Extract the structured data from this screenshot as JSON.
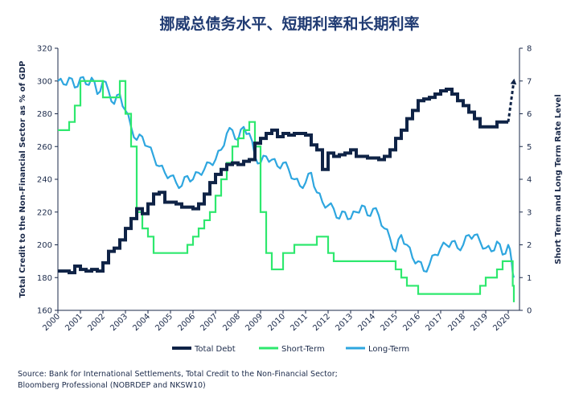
{
  "chart_data": {
    "type": "line",
    "title": "挪威总债务水平、短期利率和长期利率",
    "ylabel_left": "Total Credit to the Non-Financial Sector as % of GDP",
    "ylabel_right": "Short Term and Long Term Rate Level",
    "ylim_left": [
      160,
      320
    ],
    "ylim_right": [
      0,
      8
    ],
    "xlim": [
      2000.0,
      2020.5
    ],
    "x_ticks": [
      "2000",
      "2001",
      "2002",
      "2003",
      "2004",
      "2005",
      "2006",
      "2007",
      "2008",
      "2009",
      "2010",
      "2011",
      "2012",
      "2013",
      "2014",
      "2015",
      "2016",
      "2017",
      "2018",
      "2019",
      "2020"
    ],
    "y_ticks_left": [
      "160",
      "180",
      "200",
      "220",
      "240",
      "260",
      "280",
      "300",
      "320"
    ],
    "y_ticks_right": [
      "0",
      "1",
      "2",
      "3",
      "4",
      "5",
      "6",
      "7",
      "8"
    ],
    "grid": false,
    "legend_position": "bottom",
    "series": [
      {
        "name": "Total Debt",
        "axis": "left",
        "color": "#0f2346",
        "x": [
          2000.0,
          2000.25,
          2000.5,
          2000.75,
          2001.0,
          2001.25,
          2001.5,
          2001.75,
          2002.0,
          2002.25,
          2002.5,
          2002.75,
          2003.0,
          2003.25,
          2003.5,
          2003.75,
          2004.0,
          2004.25,
          2004.5,
          2004.75,
          2005.0,
          2005.25,
          2005.5,
          2005.75,
          2006.0,
          2006.25,
          2006.5,
          2006.75,
          2007.0,
          2007.25,
          2007.5,
          2007.75,
          2008.0,
          2008.25,
          2008.5,
          2008.75,
          2009.0,
          2009.25,
          2009.5,
          2009.75,
          2010.0,
          2010.25,
          2010.5,
          2010.75,
          2011.0,
          2011.25,
          2011.5,
          2011.75,
          2012.0,
          2012.25,
          2012.5,
          2012.75,
          2013.0,
          2013.25,
          2013.5,
          2013.75,
          2014.0,
          2014.25,
          2014.5,
          2014.75,
          2015.0,
          2015.25,
          2015.5,
          2015.75,
          2016.0,
          2016.25,
          2016.5,
          2016.75,
          2017.0,
          2017.25,
          2017.5,
          2017.75,
          2018.0,
          2018.25,
          2018.5,
          2018.75,
          2019.0,
          2019.25,
          2019.5,
          2019.75,
          2020.0
        ],
        "values": [
          184,
          184,
          183,
          187,
          185,
          184,
          185,
          184,
          189,
          196,
          198,
          203,
          210,
          216,
          222,
          219,
          225,
          231,
          232,
          226,
          226,
          225,
          223,
          223,
          222,
          225,
          231,
          238,
          243,
          246,
          249,
          250,
          249,
          251,
          252,
          262,
          265,
          268,
          270,
          266,
          268,
          267,
          268,
          268,
          267,
          261,
          258,
          246,
          256,
          254,
          255,
          256,
          258,
          254,
          254,
          253,
          253,
          252,
          254,
          258,
          265,
          270,
          277,
          282,
          288,
          289,
          290,
          292,
          294,
          295,
          292,
          288,
          285,
          281,
          277,
          272,
          272,
          272,
          275,
          275,
          275
        ],
        "projection": {
          "x": [
            2020.0,
            2020.25
          ],
          "values": [
            275,
            300
          ]
        }
      },
      {
        "name": "Short-Term",
        "axis": "right",
        "color": "#2ee86e",
        "x": [
          2000.0,
          2000.25,
          2000.5,
          2000.75,
          2001.0,
          2001.25,
          2001.5,
          2001.75,
          2002.0,
          2002.25,
          2002.5,
          2002.75,
          2003.0,
          2003.25,
          2003.5,
          2003.75,
          2004.0,
          2004.25,
          2004.5,
          2004.75,
          2005.0,
          2005.25,
          2005.5,
          2005.75,
          2006.0,
          2006.25,
          2006.5,
          2006.75,
          2007.0,
          2007.25,
          2007.5,
          2007.75,
          2008.0,
          2008.25,
          2008.5,
          2008.75,
          2009.0,
          2009.25,
          2009.5,
          2009.75,
          2010.0,
          2010.25,
          2010.5,
          2010.75,
          2011.0,
          2011.25,
          2011.5,
          2011.75,
          2012.0,
          2012.25,
          2012.5,
          2012.75,
          2013.0,
          2013.25,
          2013.5,
          2013.75,
          2014.0,
          2014.25,
          2014.5,
          2014.75,
          2015.0,
          2015.25,
          2015.5,
          2015.75,
          2016.0,
          2016.25,
          2016.5,
          2016.75,
          2017.0,
          2017.25,
          2017.5,
          2017.75,
          2018.0,
          2018.25,
          2018.5,
          2018.75,
          2019.0,
          2019.25,
          2019.5,
          2019.75,
          2020.0,
          2020.1,
          2020.2,
          2020.25
        ],
        "values": [
          5.5,
          5.5,
          5.75,
          6.25,
          7.0,
          7.0,
          7.0,
          7.0,
          6.5,
          6.5,
          6.5,
          7.0,
          6.0,
          5.0,
          3.0,
          2.5,
          2.25,
          1.75,
          1.75,
          1.75,
          1.75,
          1.75,
          1.75,
          2.0,
          2.25,
          2.5,
          2.75,
          3.0,
          3.5,
          4.0,
          4.5,
          5.0,
          5.25,
          5.5,
          5.75,
          5.0,
          3.0,
          1.75,
          1.25,
          1.25,
          1.75,
          1.75,
          2.0,
          2.0,
          2.0,
          2.0,
          2.25,
          2.25,
          1.75,
          1.5,
          1.5,
          1.5,
          1.5,
          1.5,
          1.5,
          1.5,
          1.5,
          1.5,
          1.5,
          1.5,
          1.25,
          1.0,
          0.75,
          0.75,
          0.5,
          0.5,
          0.5,
          0.5,
          0.5,
          0.5,
          0.5,
          0.5,
          0.5,
          0.5,
          0.5,
          0.75,
          1.0,
          1.0,
          1.25,
          1.5,
          1.5,
          1.5,
          0.75,
          0.25
        ]
      },
      {
        "name": "Long-Term",
        "axis": "right",
        "color": "#2ea6df",
        "x": [
          2000.0,
          2000.25,
          2000.5,
          2000.75,
          2001.0,
          2001.25,
          2001.5,
          2001.75,
          2002.0,
          2002.25,
          2002.5,
          2002.75,
          2003.0,
          2003.25,
          2003.5,
          2003.75,
          2004.0,
          2004.25,
          2004.5,
          2004.75,
          2005.0,
          2005.25,
          2005.5,
          2005.75,
          2006.0,
          2006.25,
          2006.5,
          2006.75,
          2007.0,
          2007.25,
          2007.5,
          2007.75,
          2008.0,
          2008.25,
          2008.5,
          2008.75,
          2009.0,
          2009.25,
          2009.5,
          2009.75,
          2010.0,
          2010.25,
          2010.5,
          2010.75,
          2011.0,
          2011.25,
          2011.5,
          2011.75,
          2012.0,
          2012.25,
          2012.5,
          2012.75,
          2013.0,
          2013.25,
          2013.5,
          2013.75,
          2014.0,
          2014.25,
          2014.5,
          2014.75,
          2015.0,
          2015.25,
          2015.5,
          2015.75,
          2016.0,
          2016.25,
          2016.5,
          2016.75,
          2017.0,
          2017.25,
          2017.5,
          2017.75,
          2018.0,
          2018.25,
          2018.5,
          2018.75,
          2019.0,
          2019.25,
          2019.5,
          2019.75,
          2020.0,
          2020.15,
          2020.25
        ],
        "values": [
          7.0,
          6.9,
          7.1,
          6.8,
          7.1,
          6.9,
          7.1,
          6.6,
          7.0,
          6.7,
          6.3,
          6.6,
          6.1,
          5.6,
          5.2,
          5.3,
          5.0,
          4.7,
          4.4,
          4.2,
          4.1,
          3.9,
          3.8,
          4.1,
          4.0,
          4.2,
          4.3,
          4.5,
          4.6,
          4.9,
          5.4,
          5.5,
          5.2,
          5.6,
          5.4,
          4.7,
          4.5,
          4.7,
          4.6,
          4.4,
          4.5,
          4.3,
          4.0,
          3.8,
          3.9,
          4.2,
          3.6,
          3.3,
          3.2,
          3.1,
          2.8,
          3.0,
          2.8,
          3.0,
          3.2,
          2.9,
          3.1,
          2.9,
          2.5,
          2.2,
          1.8,
          2.3,
          2.0,
          1.6,
          1.5,
          1.2,
          1.4,
          1.7,
          1.9,
          2.0,
          2.1,
          1.9,
          2.0,
          2.3,
          2.3,
          2.1,
          1.9,
          1.8,
          2.1,
          1.7,
          2.0,
          1.5,
          1.0
        ]
      }
    ]
  },
  "source": {
    "line1": "Source: Bank for International Settlements, Total Credit to the Non-Financial Sector;",
    "line2": "Bloomberg Professional (NOBRDEP and NKSW10)"
  }
}
